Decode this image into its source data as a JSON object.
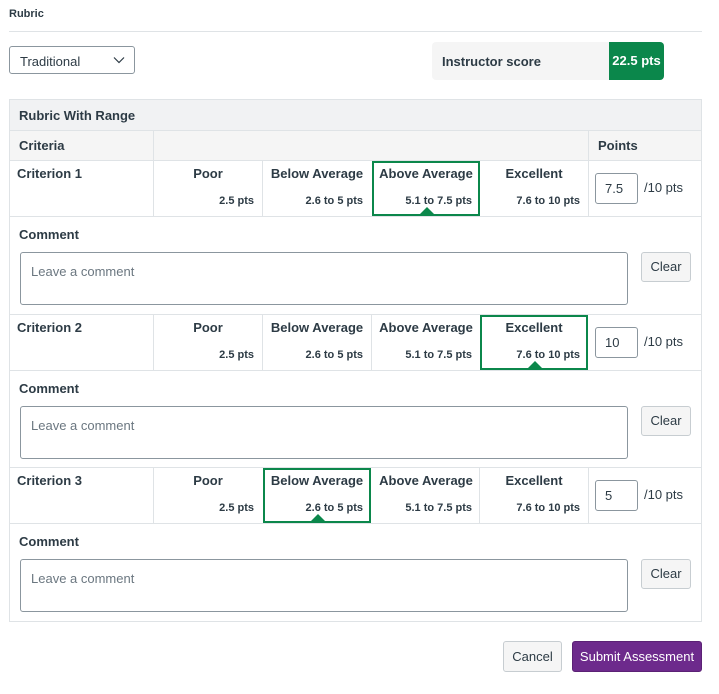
{
  "header": {
    "title": "Rubric"
  },
  "rating_select": {
    "value": "Traditional",
    "icon": "chevron-down-icon"
  },
  "instructor_score": {
    "label": "Instructor score",
    "value": "22.5 pts",
    "color": "#0b874b"
  },
  "rubric": {
    "title": "Rubric With Range",
    "criteria_header": "Criteria",
    "points_header": "Points",
    "criteria": [
      {
        "name": "Criterion 1",
        "ratings": [
          {
            "title": "Poor",
            "points": "2.5 pts"
          },
          {
            "title": "Below Average",
            "points": "2.6 to 5 pts"
          },
          {
            "title": "Above Average",
            "points": "5.1 to 7.5 pts"
          },
          {
            "title": "Excellent",
            "points": "7.6 to 10 pts"
          }
        ],
        "selected_rating": "Above Average",
        "points_value": "7.5",
        "points_max": "/10 pts",
        "comment_label": "Comment",
        "comment_placeholder": "Leave a comment",
        "clear_label": "Clear"
      },
      {
        "name": "Criterion 2",
        "ratings": [
          {
            "title": "Poor",
            "points": "2.5 pts"
          },
          {
            "title": "Below Average",
            "points": "2.6 to 5 pts"
          },
          {
            "title": "Above Average",
            "points": "5.1 to 7.5 pts"
          },
          {
            "title": "Excellent",
            "points": "7.6 to 10 pts"
          }
        ],
        "selected_rating": "Excellent",
        "points_value": "10",
        "points_max": "/10 pts",
        "comment_label": "Comment",
        "comment_placeholder": "Leave a comment",
        "clear_label": "Clear"
      },
      {
        "name": "Criterion 3",
        "ratings": [
          {
            "title": "Poor",
            "points": "2.5 pts"
          },
          {
            "title": "Below Average",
            "points": "2.6 to 5 pts"
          },
          {
            "title": "Above Average",
            "points": "5.1 to 7.5 pts"
          },
          {
            "title": "Excellent",
            "points": "7.6 to 10 pts"
          }
        ],
        "selected_rating": "Below Average",
        "points_value": "5",
        "points_max": "/10 pts",
        "comment_label": "Comment",
        "comment_placeholder": "Leave a comment",
        "clear_label": "Clear"
      }
    ]
  },
  "footer": {
    "cancel_label": "Cancel",
    "submit_label": "Submit Assessment",
    "submit_color": "#6d2a8c"
  }
}
